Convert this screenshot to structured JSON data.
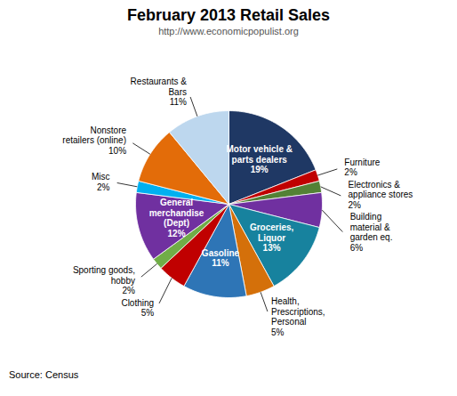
{
  "chart_data": {
    "type": "pie",
    "title": "February 2013 Retail Sales",
    "subtitle": "http://www.economicpopulist.org",
    "source": "Source: Census",
    "categories": [
      "Motor vehicle &\nparts dealers",
      "Furniture",
      "Electronics &\nappliance stores",
      "Building\nmaterial &\ngarden eq.",
      "Groceries,\nLiquor",
      "Health,\nPrescriptions,\nPersonal",
      "Gasoline",
      "Clothing",
      "Sporting goods,\nhobby",
      "General\nmerchandise\n(Dept)",
      "Misc",
      "Nonstore\nretailers (online)",
      "Restaurants &\nBars"
    ],
    "values": [
      19,
      2,
      2,
      6,
      13,
      5,
      11,
      5,
      2,
      12,
      2,
      10,
      11
    ],
    "value_labels": [
      "19%",
      "2%",
      "2%",
      "6%",
      "13%",
      "5%",
      "11%",
      "5%",
      "2%",
      "12%",
      "2%",
      "10%",
      "11%"
    ],
    "colors": [
      "#1F3864",
      "#C00000",
      "#538135",
      "#7030A0",
      "#17829E",
      "#D4700A",
      "#2E75B6",
      "#C00000",
      "#70AD47",
      "#7030A0",
      "#00B0F0",
      "#E36C09",
      "#BDD7EE"
    ],
    "data_labels": true
  }
}
